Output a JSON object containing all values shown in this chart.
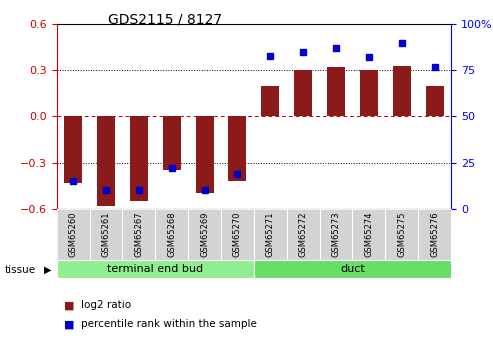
{
  "title": "GDS2115 / 8127",
  "samples": [
    "GSM65260",
    "GSM65261",
    "GSM65267",
    "GSM65268",
    "GSM65269",
    "GSM65270",
    "GSM65271",
    "GSM65272",
    "GSM65273",
    "GSM65274",
    "GSM65275",
    "GSM65276"
  ],
  "log2_ratio": [
    -0.43,
    -0.58,
    -0.55,
    -0.35,
    -0.5,
    -0.42,
    0.2,
    0.3,
    0.32,
    0.3,
    0.33,
    0.2
  ],
  "percentile": [
    15,
    10,
    10,
    22,
    10,
    19,
    83,
    85,
    87,
    82,
    90,
    77
  ],
  "tissue_groups": [
    {
      "label": "terminal end bud",
      "start": 0,
      "end": 6,
      "color": "#90EE90"
    },
    {
      "label": "duct",
      "start": 6,
      "end": 12,
      "color": "#66DD66"
    }
  ],
  "bar_color": "#8B1A1A",
  "dot_color": "#0000CC",
  "ylim_left": [
    -0.6,
    0.6
  ],
  "ylim_right": [
    0,
    100
  ],
  "yticks_left": [
    -0.6,
    -0.3,
    0.0,
    0.3,
    0.6
  ],
  "yticks_right": [
    0,
    25,
    50,
    75,
    100
  ],
  "bar_width": 0.55,
  "background_color": "#ffffff",
  "label_bg_color": "#D3D3D3",
  "legend_items": [
    {
      "label": "log2 ratio",
      "color": "#8B1A1A"
    },
    {
      "label": "percentile rank within the sample",
      "color": "#0000CC"
    }
  ]
}
